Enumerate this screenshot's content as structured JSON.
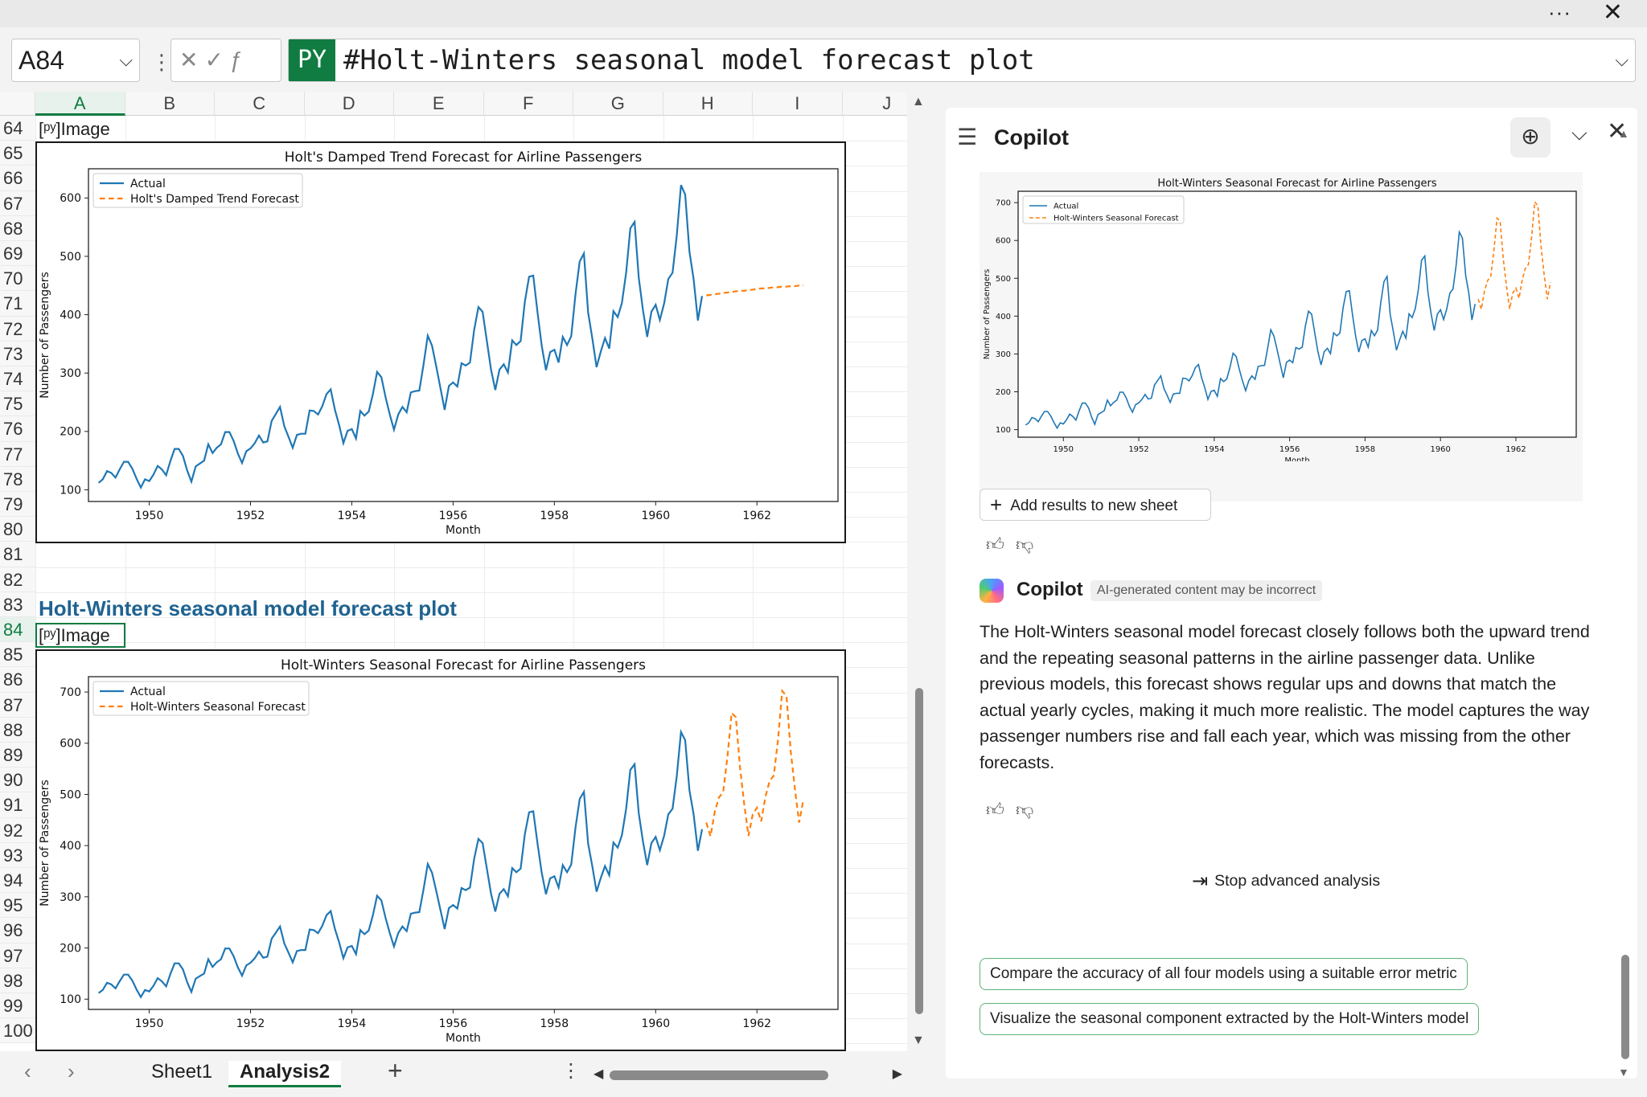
{
  "window": {
    "more_label": "···",
    "close_label": "✕"
  },
  "formula_bar": {
    "name_box": "A84",
    "badge": "PY",
    "formula": "#Holt-Winters seasonal model forecast plot"
  },
  "sheet": {
    "columns": [
      "A",
      "B",
      "C",
      "D",
      "E",
      "F",
      "G",
      "H",
      "I",
      "J"
    ],
    "active_column": "A",
    "rows": [
      "64",
      "65",
      "66",
      "67",
      "68",
      "69",
      "70",
      "71",
      "72",
      "73",
      "74",
      "75",
      "76",
      "77",
      "78",
      "79",
      "80",
      "81",
      "82",
      "83",
      "84",
      "85",
      "86",
      "87",
      "88",
      "89",
      "90",
      "91",
      "92",
      "93",
      "94",
      "95",
      "96",
      "97",
      "98",
      "99",
      "100"
    ],
    "active_row": "84",
    "image_cell_label": "[ᵖʸ]Image",
    "heading_cell": "Holt-Winters seasonal model forecast plot"
  },
  "tabs": {
    "items": [
      "Sheet1",
      "Analysis2"
    ],
    "active": "Analysis2",
    "add_label": "+",
    "more_label": "⋮"
  },
  "copilot": {
    "title": "Copilot",
    "add_results_label": "Add results to new sheet",
    "sender": "Copilot",
    "disclaimer": "AI-generated content may be incorrect",
    "message": "The Holt-Winters seasonal model forecast closely follows both the upward trend and the repeating seasonal patterns in the airline passenger data. Unlike previous models, this forecast shows regular ups and downs that match the actual yearly cycles, making it much more realistic. The model captures the way passenger numbers rise and fall each year, which was missing from the other forecasts.",
    "stop_label": "Stop advanced analysis",
    "suggestions": [
      "Compare the accuracy of all four models using a suitable error metric",
      "Visualize the seasonal component extracted by the Holt-Winters model"
    ]
  },
  "colors": {
    "actual": "#1f77b4",
    "forecast": "#ff7f0e",
    "accent": "#107c41"
  },
  "chart_data": [
    {
      "id": "damped",
      "type": "line",
      "title": "Holt's Damped Trend Forecast for Airline Passengers",
      "xlabel": "Month",
      "ylabel": "Number of Passengers",
      "xlim": [
        1948.8,
        1963.6
      ],
      "ylim": [
        80,
        650
      ],
      "xticks": [
        1950,
        1952,
        1954,
        1956,
        1958,
        1960,
        1962
      ],
      "yticks": [
        100,
        200,
        300,
        400,
        500,
        600
      ],
      "legend": "top-left",
      "series": [
        {
          "name": "Actual",
          "start_year": 1949,
          "step": 0.0833333,
          "values": [
            112,
            118,
            132,
            129,
            121,
            135,
            148,
            148,
            136,
            119,
            104,
            118,
            115,
            126,
            141,
            135,
            125,
            149,
            170,
            170,
            158,
            133,
            114,
            140,
            145,
            150,
            178,
            163,
            172,
            178,
            199,
            199,
            184,
            162,
            146,
            166,
            171,
            180,
            193,
            181,
            183,
            218,
            230,
            242,
            209,
            191,
            172,
            194,
            196,
            196,
            236,
            235,
            229,
            243,
            264,
            272,
            237,
            211,
            180,
            201,
            204,
            188,
            235,
            227,
            234,
            264,
            302,
            293,
            259,
            229,
            203,
            229,
            242,
            233,
            267,
            269,
            270,
            315,
            364,
            347,
            312,
            274,
            237,
            278,
            284,
            277,
            317,
            313,
            318,
            374,
            413,
            405,
            355,
            306,
            271,
            306,
            315,
            301,
            356,
            348,
            355,
            422,
            465,
            467,
            404,
            347,
            305,
            336,
            340,
            318,
            362,
            348,
            363,
            435,
            491,
            505,
            404,
            359,
            310,
            337,
            360,
            342,
            406,
            396,
            420,
            472,
            548,
            559,
            463,
            407,
            362,
            405,
            417,
            391,
            419,
            461,
            472,
            535,
            622,
            606,
            508,
            461,
            390,
            432
          ]
        },
        {
          "name": "Holt's Damped Trend Forecast",
          "start_year": 1961,
          "step": 0.0833333,
          "values": [
            433,
            434,
            435,
            436,
            437,
            438,
            439,
            440,
            441,
            441,
            442,
            443,
            444,
            445,
            445,
            446,
            447,
            447,
            448,
            448,
            449,
            449,
            450,
            450
          ]
        }
      ]
    },
    {
      "id": "holtwinters",
      "type": "line",
      "title": "Holt-Winters Seasonal Forecast for Airline Passengers",
      "xlabel": "Month",
      "ylabel": "Number of Passengers",
      "xlim": [
        1948.8,
        1963.6
      ],
      "ylim": [
        80,
        730
      ],
      "xticks": [
        1950,
        1952,
        1954,
        1956,
        1958,
        1960,
        1962
      ],
      "yticks": [
        100,
        200,
        300,
        400,
        500,
        600,
        700
      ],
      "legend": "top-left",
      "series": [
        {
          "name": "Actual",
          "start_year": 1949,
          "step": 0.0833333,
          "values": [
            112,
            118,
            132,
            129,
            121,
            135,
            148,
            148,
            136,
            119,
            104,
            118,
            115,
            126,
            141,
            135,
            125,
            149,
            170,
            170,
            158,
            133,
            114,
            140,
            145,
            150,
            178,
            163,
            172,
            178,
            199,
            199,
            184,
            162,
            146,
            166,
            171,
            180,
            193,
            181,
            183,
            218,
            230,
            242,
            209,
            191,
            172,
            194,
            196,
            196,
            236,
            235,
            229,
            243,
            264,
            272,
            237,
            211,
            180,
            201,
            204,
            188,
            235,
            227,
            234,
            264,
            302,
            293,
            259,
            229,
            203,
            229,
            242,
            233,
            267,
            269,
            270,
            315,
            364,
            347,
            312,
            274,
            237,
            278,
            284,
            277,
            317,
            313,
            318,
            374,
            413,
            405,
            355,
            306,
            271,
            306,
            315,
            301,
            356,
            348,
            355,
            422,
            465,
            467,
            404,
            347,
            305,
            336,
            340,
            318,
            362,
            348,
            363,
            435,
            491,
            505,
            404,
            359,
            310,
            337,
            360,
            342,
            406,
            396,
            420,
            472,
            548,
            559,
            463,
            407,
            362,
            405,
            417,
            391,
            419,
            461,
            472,
            535,
            622,
            606,
            508,
            461,
            390,
            432
          ]
        },
        {
          "name": "Holt-Winters Seasonal Forecast",
          "start_year": 1961,
          "step": 0.0833333,
          "values": [
            445,
            418,
            466,
            494,
            505,
            573,
            659,
            651,
            551,
            480,
            419,
            461,
            474,
            447,
            495,
            526,
            537,
            608,
            702,
            692,
            585,
            510,
            445,
            490
          ]
        }
      ]
    }
  ]
}
